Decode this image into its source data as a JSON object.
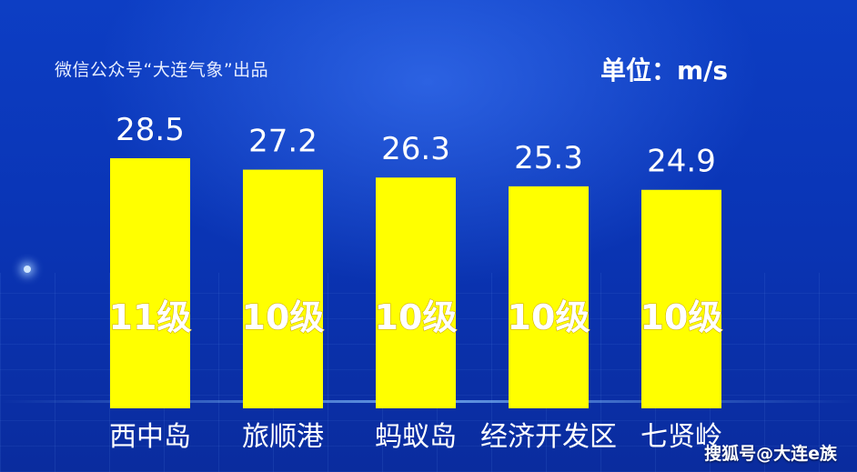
{
  "credit": "微信公众号“大连气象”出品",
  "unit_label": "单位：m/s",
  "watermark": "搜狐号@大连e族",
  "colors": {
    "bar": "#ffff00",
    "background": "#0a35b6",
    "text": "#ffffff"
  },
  "chart_data": {
    "type": "bar",
    "categories": [
      "西中岛",
      "旅顺港",
      "蚂蚁岛",
      "经济开发区",
      "七贤岭"
    ],
    "values": [
      28.5,
      27.2,
      26.3,
      25.3,
      24.9
    ],
    "value_labels": [
      "28.5",
      "27.2",
      "26.3",
      "25.3",
      "24.9"
    ],
    "level_labels": [
      "11级",
      "10级",
      "10级",
      "10级",
      "10级"
    ],
    "ylim": [
      0,
      28.5
    ],
    "grid": false,
    "legend": "none"
  }
}
